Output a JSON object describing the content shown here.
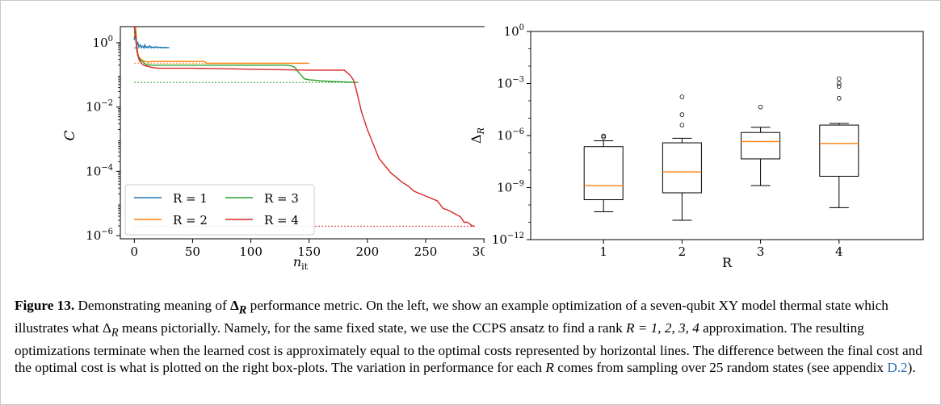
{
  "figure": {
    "label": "Figure 13.",
    "caption_parts": {
      "p1": " Demonstrating meaning of ",
      "delta_symbol": "Δ",
      "subscript": "R",
      "p2": " performance metric. On the left, we show an example optimization of a seven-qubit XY model thermal state which illustrates what ",
      "p3": " means pictorially. Namely, for the same fixed state, we use the CCPS ansatz to find a rank ",
      "rank_expr": "R = 1, 2, 3, 4",
      "p4": " approximation. The resulting optimizations terminate when the learned cost is approximately equal to the optimal costs represented by horizontal lines. The difference between the final cost and the optimal cost is what is plotted on the right box-plots. The variation in performance for each ",
      "p5": " comes from sampling over 25 random states (see appendix ",
      "appendix_link": "D.2",
      "p6": ")."
    }
  },
  "chart_data": [
    {
      "type": "line",
      "xlabel": "n",
      "xlabel_sub": "it",
      "ylabel": "C",
      "xlim": [
        -12,
        302
      ],
      "ylim_log10": [
        -6.1,
        0.5
      ],
      "xticks": [
        0,
        50,
        100,
        150,
        200,
        250,
        300
      ],
      "xtick_labels": [
        "0",
        "50",
        "100",
        "150",
        "200",
        "250",
        "300"
      ],
      "yticks_log10": [
        -6,
        -4,
        -2,
        0
      ],
      "ytick_labels": [
        {
          "base": "10",
          "exp": "−6"
        },
        {
          "base": "10",
          "exp": "−4"
        },
        {
          "base": "10",
          "exp": "−2"
        },
        {
          "base": "10",
          "exp": "0"
        }
      ],
      "legend_position": "lower-left",
      "series": [
        {
          "name": "R = 1",
          "color": "#1f77b4",
          "optimal": 0.69,
          "x": [
            0,
            0.5,
            1,
            1.5,
            2,
            3,
            4,
            5,
            6,
            7,
            8,
            9,
            10,
            11,
            12,
            13,
            14,
            15,
            16,
            17,
            18,
            19,
            20,
            21,
            22,
            23,
            24,
            25,
            26,
            27,
            28,
            29,
            30
          ],
          "y": [
            1.2,
            2.7,
            1.5,
            0.95,
            0.8,
            1.0,
            0.74,
            0.85,
            0.72,
            0.78,
            0.7,
            0.86,
            0.71,
            0.76,
            0.7,
            0.8,
            0.72,
            0.75,
            0.7,
            0.73,
            0.72,
            0.76,
            0.7,
            0.73,
            0.71,
            0.72,
            0.7,
            0.71,
            0.72,
            0.7,
            0.71,
            0.7,
            0.7
          ]
        },
        {
          "name": "R = 2",
          "color": "#ff7f0e",
          "optimal": 0.23,
          "x": [
            0,
            1,
            2,
            3,
            4,
            6,
            8,
            10,
            12,
            15,
            20,
            30,
            40,
            50,
            55,
            60,
            62,
            80,
            100,
            120,
            140,
            150
          ],
          "y": [
            1.5,
            3.1,
            0.9,
            0.48,
            0.35,
            0.3,
            0.27,
            0.26,
            0.25,
            0.26,
            0.26,
            0.26,
            0.26,
            0.26,
            0.26,
            0.26,
            0.23,
            0.23,
            0.23,
            0.23,
            0.23,
            0.23
          ]
        },
        {
          "name": "R = 3",
          "color": "#2ca02c",
          "optimal": 0.058,
          "x": [
            0,
            1,
            2,
            3,
            5,
            8,
            10,
            15,
            20,
            50,
            100,
            130,
            135,
            138,
            140,
            143,
            146,
            150,
            155,
            160,
            170,
            180,
            190,
            192
          ],
          "y": [
            2.0,
            2.5,
            0.7,
            0.4,
            0.3,
            0.24,
            0.21,
            0.2,
            0.2,
            0.2,
            0.2,
            0.2,
            0.19,
            0.17,
            0.13,
            0.1,
            0.075,
            0.07,
            0.068,
            0.065,
            0.062,
            0.06,
            0.058,
            0.058
          ]
        },
        {
          "name": "R = 4",
          "color": "#d62728",
          "optimal": 1.95e-06,
          "x": [
            0,
            1,
            2,
            3,
            4,
            5,
            6,
            8,
            10,
            15,
            20,
            50,
            100,
            150,
            180,
            185,
            188,
            190,
            192,
            195,
            200,
            205,
            210,
            220,
            230,
            235,
            240,
            250,
            260,
            265,
            270,
            275,
            280,
            283,
            286,
            290,
            292
          ],
          "y": [
            3.0,
            2.0,
            0.6,
            0.42,
            0.3,
            0.26,
            0.23,
            0.2,
            0.19,
            0.17,
            0.16,
            0.16,
            0.15,
            0.14,
            0.14,
            0.1,
            0.07,
            0.04,
            0.02,
            0.007,
            0.002,
            0.0007,
            0.00025,
            9e-05,
            4.5e-05,
            3.5e-05,
            2.4e-05,
            1.7e-05,
            1.2e-05,
            7e-06,
            6e-06,
            4.8e-06,
            3.8e-06,
            2.6e-06,
            2.6e-06,
            2e-06,
            1.95e-06
          ]
        }
      ]
    },
    {
      "type": "box",
      "xlabel": "R",
      "ylabel": "Δ",
      "ylabel_sub": "R",
      "ylim_log10": [
        -12,
        0
      ],
      "yticks_log10": [
        -12,
        -9,
        -6,
        -3,
        0
      ],
      "ytick_labels": [
        {
          "base": "10",
          "exp": "−12"
        },
        {
          "base": "10",
          "exp": "−9"
        },
        {
          "base": "10",
          "exp": "−6"
        },
        {
          "base": "10",
          "exp": "−3"
        },
        {
          "base": "10",
          "exp": "0"
        }
      ],
      "categories": [
        "1",
        "2",
        "3",
        "4"
      ],
      "median_color": "#ff7f0e",
      "boxes": [
        {
          "whislo": 4e-11,
          "q1": 2e-10,
          "med": 1.3e-09,
          "q3": 2.3e-07,
          "whishi": 5e-07,
          "fliers": [
            8e-07,
            9.5e-07
          ]
        },
        {
          "whislo": 1.3e-11,
          "q1": 5e-10,
          "med": 8e-09,
          "q3": 3.8e-07,
          "whishi": 7e-07,
          "fliers": [
            4e-06,
            1.6e-05,
            0.00017
          ]
        },
        {
          "whislo": 1.3e-09,
          "q1": 4.5e-08,
          "med": 4.5e-07,
          "q3": 1.5e-06,
          "whishi": 3e-06,
          "fliers": [
            4.4e-05
          ]
        },
        {
          "whislo": 7e-11,
          "q1": 4.5e-09,
          "med": 3.5e-07,
          "q3": 4e-06,
          "whishi": 5e-06,
          "fliers": [
            0.00014,
            0.00068,
            0.001,
            0.0019
          ]
        }
      ]
    }
  ]
}
